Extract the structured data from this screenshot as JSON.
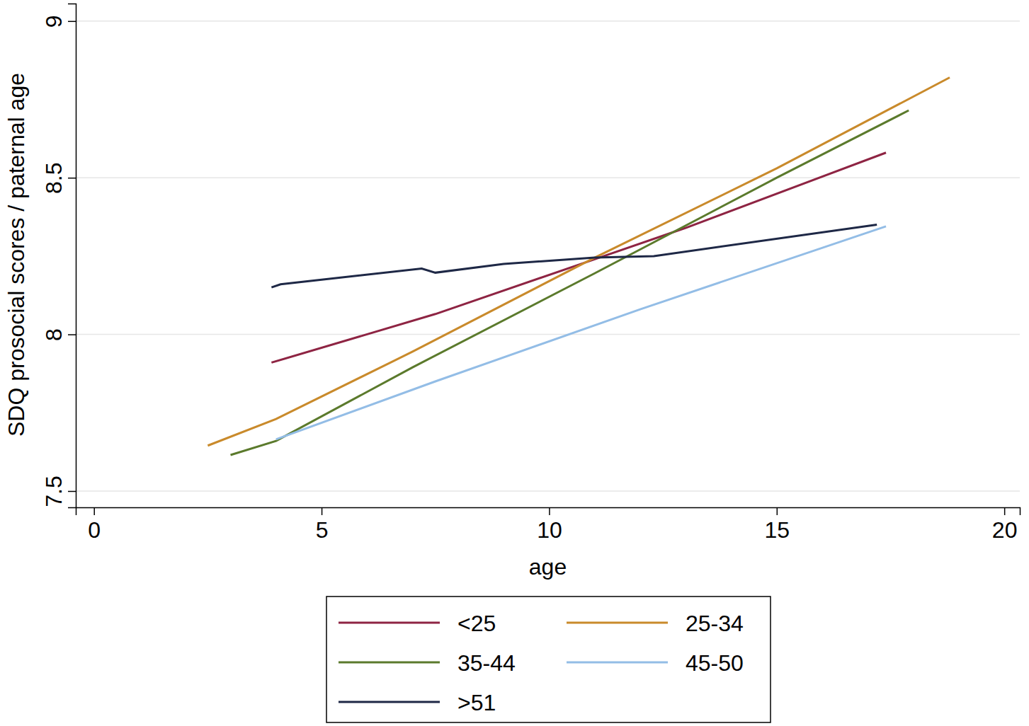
{
  "chart_data": {
    "type": "line",
    "x_label": "age",
    "y_label": "SDQ prosocial scores / paternal age",
    "xlim": [
      -0.4,
      20.34
    ],
    "xticks": [
      0,
      5,
      10,
      15,
      20
    ],
    "ylim": [
      7.448,
      9.056
    ],
    "yticks": [
      7.5,
      8,
      8.5,
      9
    ],
    "grid": true,
    "legend": "bottom",
    "series": [
      {
        "name": "<25",
        "color": "#8e2443",
        "x": [
          3.9,
          7.5,
          11,
          13,
          17.4
        ],
        "values": [
          7.91,
          8.065,
          8.24,
          8.34,
          8.58
        ]
      },
      {
        "name": "25-34",
        "color": "#c98a2b",
        "x": [
          2.5,
          4,
          7,
          11,
          15,
          18.8
        ],
        "values": [
          7.645,
          7.73,
          7.945,
          8.245,
          8.53,
          8.82
        ]
      },
      {
        "name": "35-44",
        "color": "#5b7a2c",
        "x": [
          3,
          4,
          7,
          11,
          15,
          17.9
        ],
        "values": [
          7.615,
          7.66,
          7.895,
          8.195,
          8.5,
          8.715
        ]
      },
      {
        "name": "45-50",
        "color": "#93bde6",
        "x": [
          4,
          7.5,
          12,
          17.4
        ],
        "values": [
          7.665,
          7.85,
          8.08,
          8.345
        ]
      },
      {
        "name": ">51",
        "color": "#1e2846",
        "x": [
          3.9,
          4.1,
          7.2,
          7.5,
          9,
          11,
          12.3,
          17.2
        ],
        "values": [
          8.15,
          8.16,
          8.21,
          8.197,
          8.225,
          8.245,
          8.25,
          8.35
        ]
      }
    ]
  }
}
